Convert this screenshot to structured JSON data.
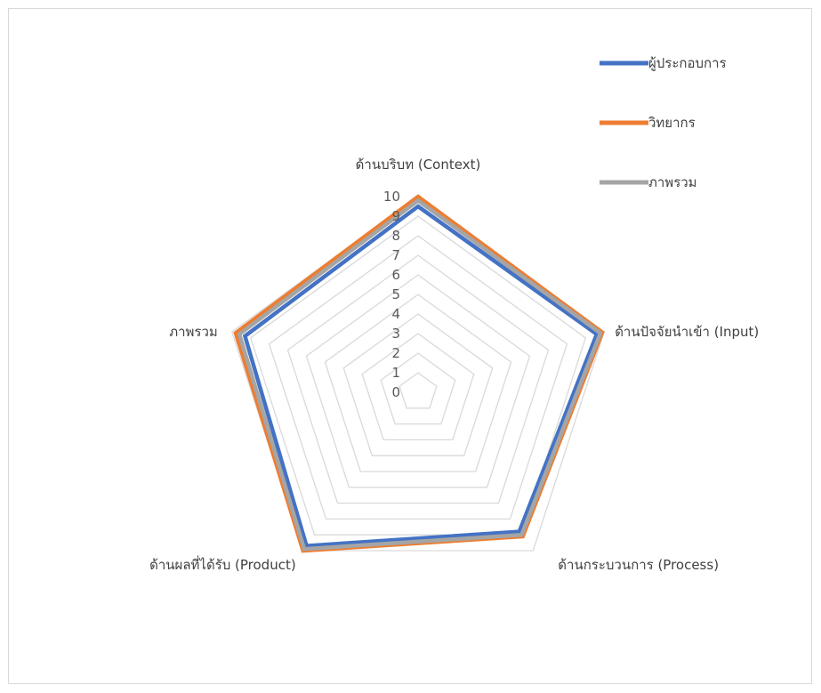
{
  "chart_data": {
    "type": "radar",
    "axes": [
      "ด้านบริบท (Context)",
      "ด้านปัจจัยนำเข้า (Input)",
      "ด้านกระบวนการ (Process)",
      "ด้านผลที่ได้รับ (Product)",
      "ภาพรวม"
    ],
    "ticks": [
      "0",
      "1",
      "2",
      "3",
      "4",
      "5",
      "6",
      "7",
      "8",
      "9",
      "10"
    ],
    "rmin": 0,
    "rmax": 10,
    "grid": true,
    "legend_position": "top-right",
    "series": [
      {
        "name": "ผู้ประกอบการ",
        "color": "#4472C4",
        "values": [
          9.5,
          9.6,
          8.8,
          9.7,
          9.3
        ]
      },
      {
        "name": "วิทยากร",
        "color": "#ED7D31",
        "values": [
          10.0,
          9.9,
          9.1,
          10.0,
          9.8
        ]
      },
      {
        "name": "ภาพรวม",
        "color": "#A5A5A5",
        "values": [
          9.8,
          9.8,
          9.0,
          9.9,
          9.6
        ]
      }
    ]
  }
}
